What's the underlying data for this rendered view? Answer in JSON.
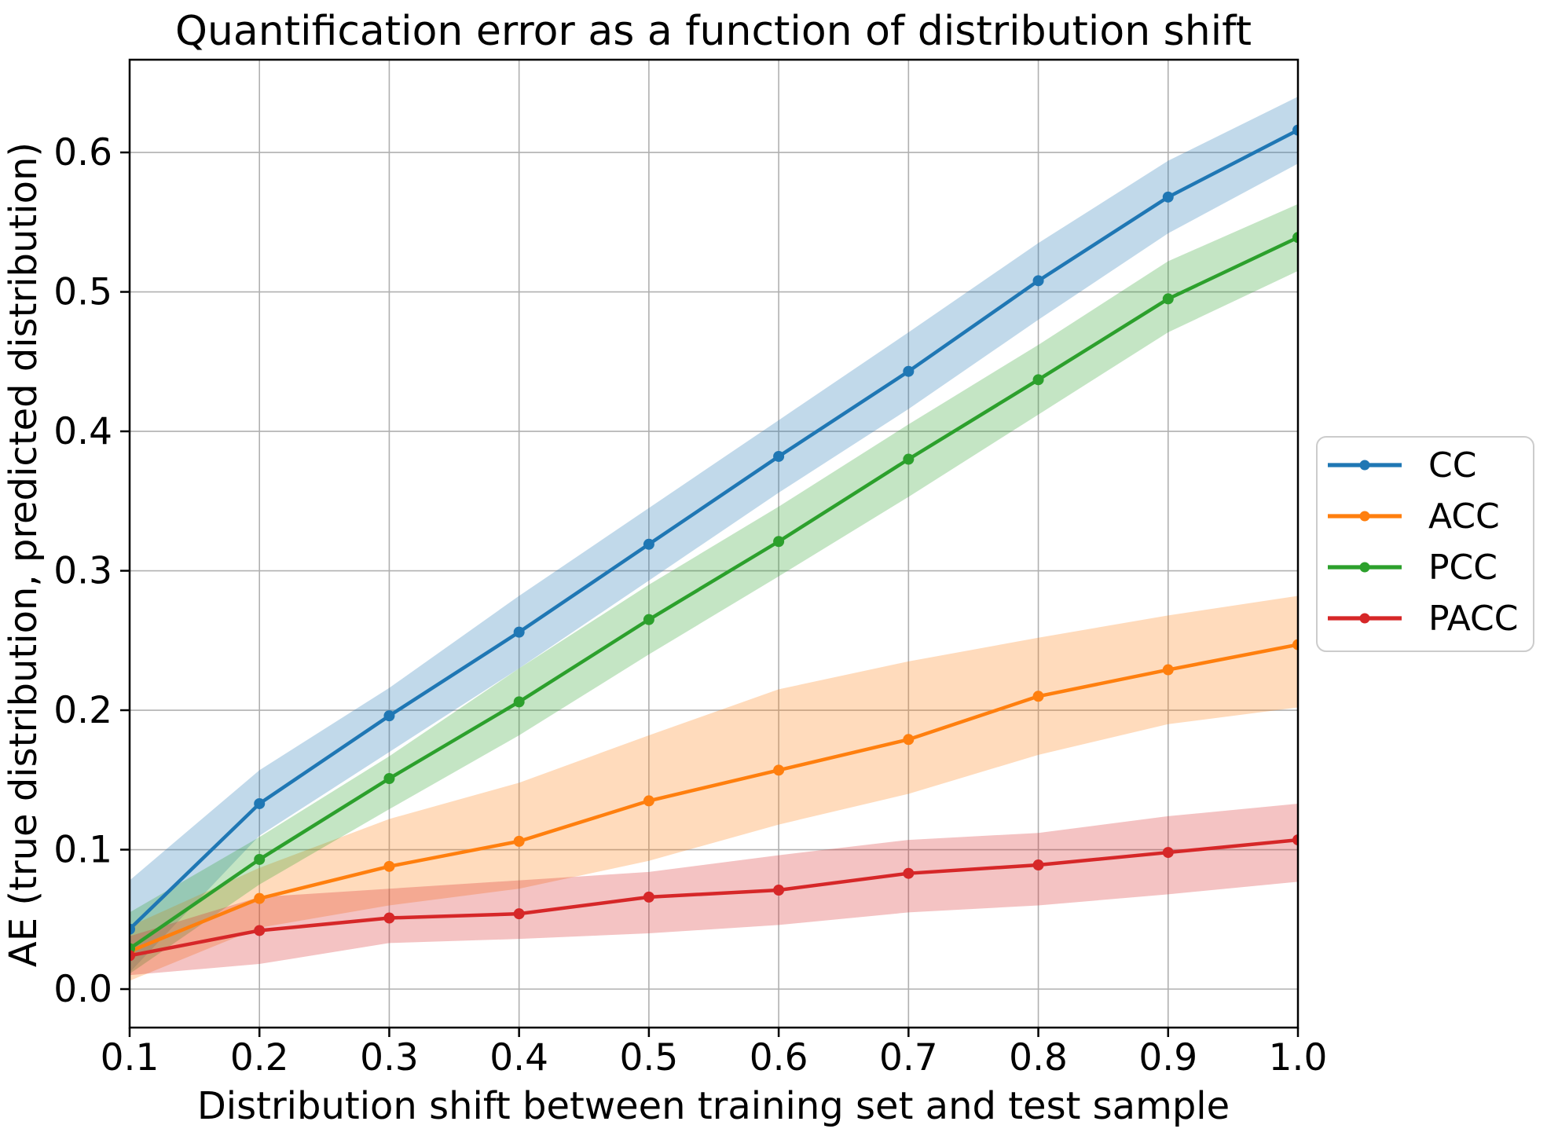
{
  "chart_data": {
    "type": "line",
    "title": "Quantification error as a function of distribution shift",
    "xlabel": "Distribution shift between training set and test sample",
    "ylabel": "AE (true distribution, predicted distribution)",
    "x": [
      0.1,
      0.2,
      0.3,
      0.4,
      0.5,
      0.6,
      0.7,
      0.8,
      0.9,
      1.0
    ],
    "x_tick_labels": [
      "0.1",
      "0.2",
      "0.3",
      "0.4",
      "0.5",
      "0.6",
      "0.7",
      "0.8",
      "0.9",
      "1.0"
    ],
    "y_ticks": [
      0.0,
      0.1,
      0.2,
      0.3,
      0.4,
      0.5,
      0.6
    ],
    "y_tick_labels": [
      "0.0",
      "0.1",
      "0.2",
      "0.3",
      "0.4",
      "0.5",
      "0.6"
    ],
    "xlim": [
      0.1,
      1.0
    ],
    "ylim": [
      -0.0276,
      0.6665
    ],
    "grid": true,
    "grid_color": "#b0b0b0",
    "spine_color": "#000000",
    "background_color": "#ffffff",
    "marker": "circle",
    "band_opacity": 0.28,
    "legend": {
      "position": "outside-right",
      "border_color": "#cccccc",
      "items": [
        "CC",
        "ACC",
        "PCC",
        "PACC"
      ]
    },
    "series": [
      {
        "name": "CC",
        "color": "#1f77b4",
        "values": [
          0.043,
          0.133,
          0.196,
          0.256,
          0.319,
          0.382,
          0.443,
          0.508,
          0.568,
          0.616
        ],
        "band_lower": [
          0.012,
          0.11,
          0.17,
          0.23,
          0.293,
          0.356,
          0.416,
          0.48,
          0.542,
          0.592
        ],
        "band_upper": [
          0.078,
          0.157,
          0.216,
          0.282,
          0.345,
          0.408,
          0.471,
          0.535,
          0.594,
          0.64
        ]
      },
      {
        "name": "ACC",
        "color": "#ff7f0e",
        "values": [
          0.027,
          0.065,
          0.088,
          0.106,
          0.135,
          0.157,
          0.179,
          0.21,
          0.229,
          0.247
        ],
        "band_lower": [
          0.006,
          0.044,
          0.06,
          0.072,
          0.092,
          0.118,
          0.14,
          0.168,
          0.19,
          0.202
        ],
        "band_upper": [
          0.045,
          0.087,
          0.122,
          0.148,
          0.182,
          0.215,
          0.235,
          0.252,
          0.268,
          0.282
        ]
      },
      {
        "name": "PCC",
        "color": "#2ca02c",
        "values": [
          0.029,
          0.093,
          0.151,
          0.206,
          0.265,
          0.321,
          0.38,
          0.437,
          0.495,
          0.539
        ],
        "band_lower": [
          0.011,
          0.075,
          0.129,
          0.182,
          0.24,
          0.296,
          0.353,
          0.412,
          0.471,
          0.515
        ],
        "band_upper": [
          0.055,
          0.109,
          0.167,
          0.23,
          0.29,
          0.346,
          0.405,
          0.462,
          0.522,
          0.563
        ]
      },
      {
        "name": "PACC",
        "color": "#d62728",
        "values": [
          0.024,
          0.042,
          0.051,
          0.054,
          0.066,
          0.071,
          0.083,
          0.089,
          0.098,
          0.107
        ],
        "band_lower": [
          0.01,
          0.018,
          0.033,
          0.036,
          0.04,
          0.046,
          0.055,
          0.06,
          0.068,
          0.077
        ],
        "band_upper": [
          0.038,
          0.066,
          0.072,
          0.078,
          0.084,
          0.096,
          0.107,
          0.112,
          0.124,
          0.133
        ]
      }
    ]
  }
}
